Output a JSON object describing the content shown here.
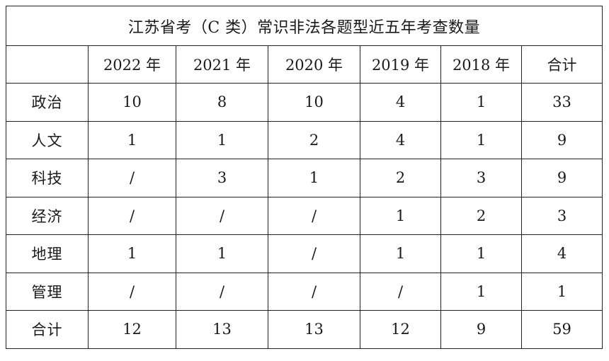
{
  "table": {
    "title": "江苏省考（C 类）常识非法各题型近五年考查数量",
    "corner": "",
    "columns": [
      "2022 年",
      "2021 年",
      "2020 年",
      "2019 年",
      "2018 年",
      "合计"
    ],
    "rows": [
      {
        "label": "政治",
        "cells": [
          "10",
          "8",
          "10",
          "4",
          "1",
          "33"
        ]
      },
      {
        "label": "人文",
        "cells": [
          "1",
          "1",
          "2",
          "4",
          "1",
          "9"
        ]
      },
      {
        "label": "科技",
        "cells": [
          "/",
          "3",
          "1",
          "2",
          "3",
          "9"
        ]
      },
      {
        "label": "经济",
        "cells": [
          "/",
          "/",
          "/",
          "1",
          "2",
          "3"
        ]
      },
      {
        "label": "地理",
        "cells": [
          "1",
          "1",
          "/",
          "1",
          "1",
          "4"
        ]
      },
      {
        "label": "管理",
        "cells": [
          "/",
          "/",
          "/",
          "/",
          "1",
          "1"
        ]
      },
      {
        "label": "合计",
        "cells": [
          "12",
          "13",
          "13",
          "12",
          "9",
          "59"
        ]
      }
    ]
  }
}
